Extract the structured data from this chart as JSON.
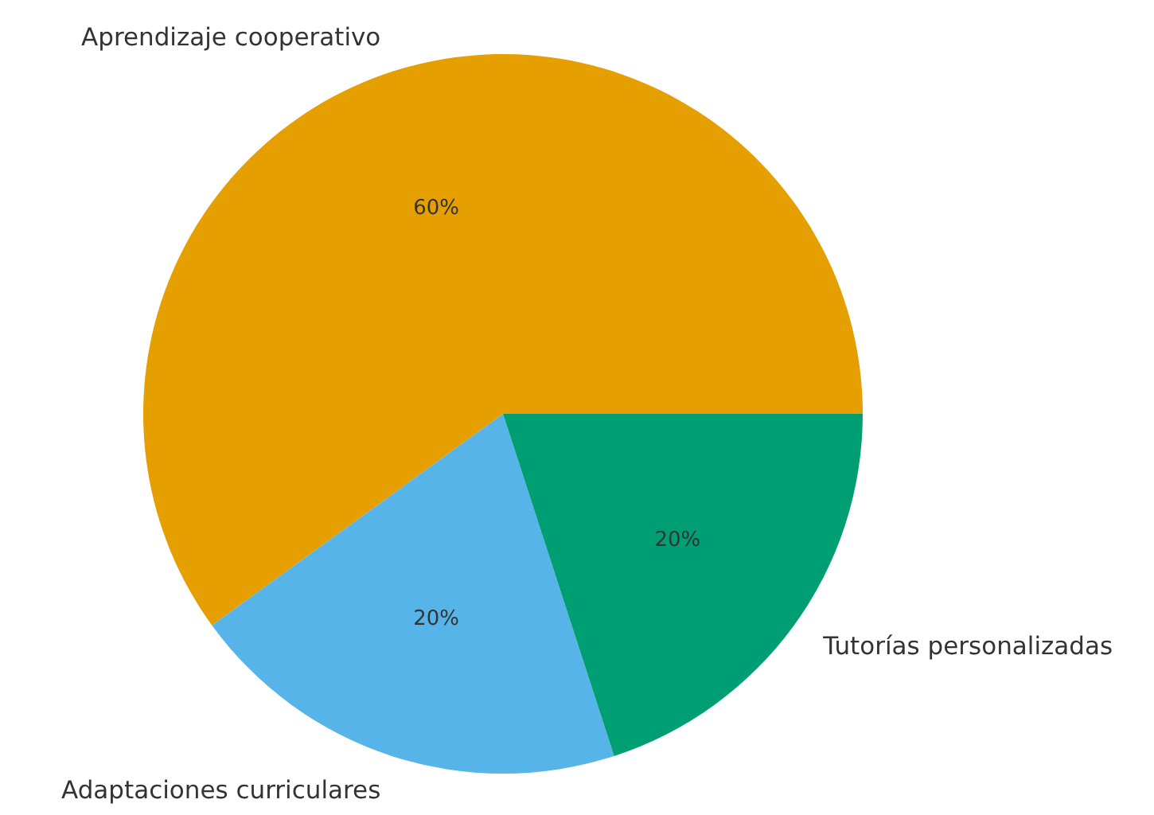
{
  "chart_data": {
    "type": "pie",
    "categories": [
      "Aprendizaje cooperativo",
      "Adaptaciones curriculares",
      "Tutorías personalizadas"
    ],
    "values": [
      60,
      20,
      20
    ],
    "colors": [
      "#e69f00",
      "#56b4e9",
      "#009e73"
    ],
    "value_labels": [
      "60%",
      "20%",
      "20%"
    ]
  }
}
